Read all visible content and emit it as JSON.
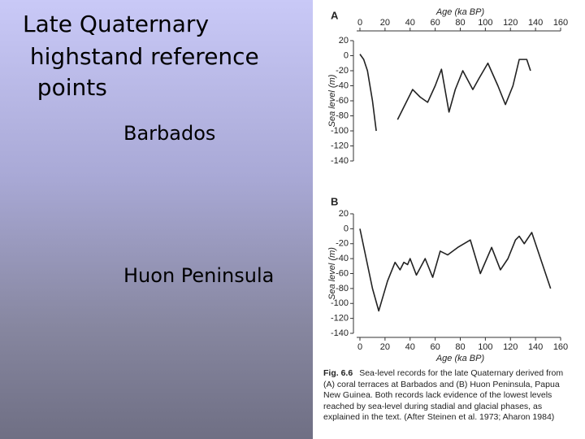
{
  "slide": {
    "title_lines": [
      "Late Quaternary",
      " highstand reference",
      "  points"
    ],
    "items": [
      "Barbados",
      "Huon Peninsula"
    ]
  },
  "caption": {
    "label": "Fig. 6.6",
    "text": "Sea-level records for the late Quaternary derived from (A) coral terraces at Barbados and (B) Huon Peninsula, Papua New Guinea. Both records lack evidence of the lowest levels reached by sea-level during stadial and glacial phases, as explained in the text. (After Steinen et al. 1973; Aharon 1984)"
  },
  "chart_data": [
    {
      "type": "line",
      "panel": "A",
      "x_label": "Age (ka BP)",
      "y_label": "Sea level (m)",
      "x_axis_position": "top",
      "color": "#222222",
      "xlim": [
        0,
        160
      ],
      "xticks": [
        0,
        20,
        40,
        60,
        80,
        100,
        120,
        140,
        160
      ],
      "ylim": [
        -140,
        20
      ],
      "yticks": [
        20,
        0,
        -20,
        -40,
        -60,
        -80,
        -100,
        -120,
        -140
      ],
      "x": [
        0,
        3,
        6,
        10,
        13,
        20,
        30,
        36,
        42,
        48,
        54,
        60,
        65,
        71,
        76,
        82,
        90,
        95,
        102,
        110,
        116,
        122,
        127,
        133,
        136
      ],
      "values": [
        2,
        -5,
        -20,
        -60,
        -100,
        null,
        -85,
        -65,
        -45,
        -55,
        -62,
        -40,
        -18,
        -75,
        -45,
        -20,
        -45,
        -30,
        -10,
        -40,
        -65,
        -40,
        -5,
        -5,
        -20
      ]
    },
    {
      "type": "line",
      "panel": "B",
      "x_label": "Age (ka BP)",
      "y_label": "Sea level (m)",
      "x_axis_position": "bottom",
      "color": "#222222",
      "xlim": [
        0,
        160
      ],
      "xticks": [
        0,
        20,
        40,
        60,
        80,
        100,
        120,
        140,
        160
      ],
      "ylim": [
        -140,
        20
      ],
      "yticks": [
        20,
        0,
        -20,
        -40,
        -60,
        -80,
        -100,
        -120,
        -140
      ],
      "x": [
        0,
        5,
        10,
        15,
        22,
        28,
        32,
        35,
        38,
        40,
        45,
        52,
        58,
        64,
        70,
        78,
        88,
        96,
        105,
        112,
        118,
        124,
        127,
        131,
        137,
        145,
        152
      ],
      "values": [
        0,
        -40,
        -80,
        -110,
        -70,
        -45,
        -55,
        -45,
        -48,
        -40,
        -62,
        -40,
        -65,
        -30,
        -35,
        -25,
        -15,
        -60,
        -25,
        -55,
        -40,
        -15,
        -10,
        -20,
        -5,
        -45,
        -80
      ]
    }
  ]
}
